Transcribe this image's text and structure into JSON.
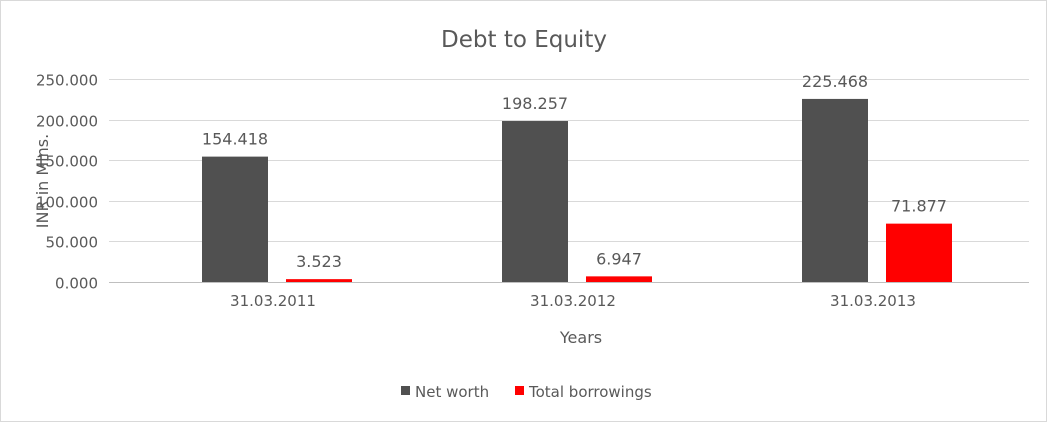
{
  "chart_data": {
    "type": "bar",
    "title": "Debt to Equity",
    "xlabel": "Years",
    "ylabel": "INR in Mlns.",
    "categories": [
      "31.03.2011",
      "31.03.2012",
      "31.03.2013"
    ],
    "series": [
      {
        "name": "Net worth",
        "values": [
          154.418,
          198.257,
          225.468
        ],
        "labels": [
          "154.418",
          "198.257",
          "225.468"
        ],
        "color": "#505050"
      },
      {
        "name": "Total borrowings",
        "values": [
          3.523,
          6.947,
          71.877
        ],
        "labels": [
          "3.523",
          "6.947",
          "71.877"
        ],
        "color": "#ff0000"
      }
    ],
    "ylim": [
      0,
      250
    ],
    "yticks": [
      "0.000",
      "50.000",
      "100.000",
      "150.000",
      "200.000",
      "250.000"
    ],
    "grid": true,
    "legend": "bottom"
  }
}
